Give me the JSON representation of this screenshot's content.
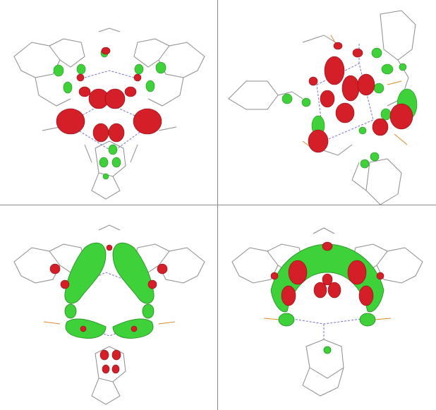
{
  "colors": {
    "background": "#ffffff",
    "divider": "#8a8a8a",
    "bond": "#8c8c8c",
    "bond_alt": "#e08a2a",
    "bond_dashed": "#7a6fd0",
    "lobe_positive": "#d41e28",
    "lobe_negative": "#3fd13a"
  },
  "panels": [
    {
      "id": "top-left",
      "icon": "molecule-orbital-red-lobes"
    },
    {
      "id": "top-right",
      "icon": "molecule-orbital-mixed-lobes"
    },
    {
      "id": "bottom-left",
      "icon": "molecule-orbital-green-triangle"
    },
    {
      "id": "bottom-right",
      "icon": "molecule-orbital-green-arc"
    }
  ]
}
